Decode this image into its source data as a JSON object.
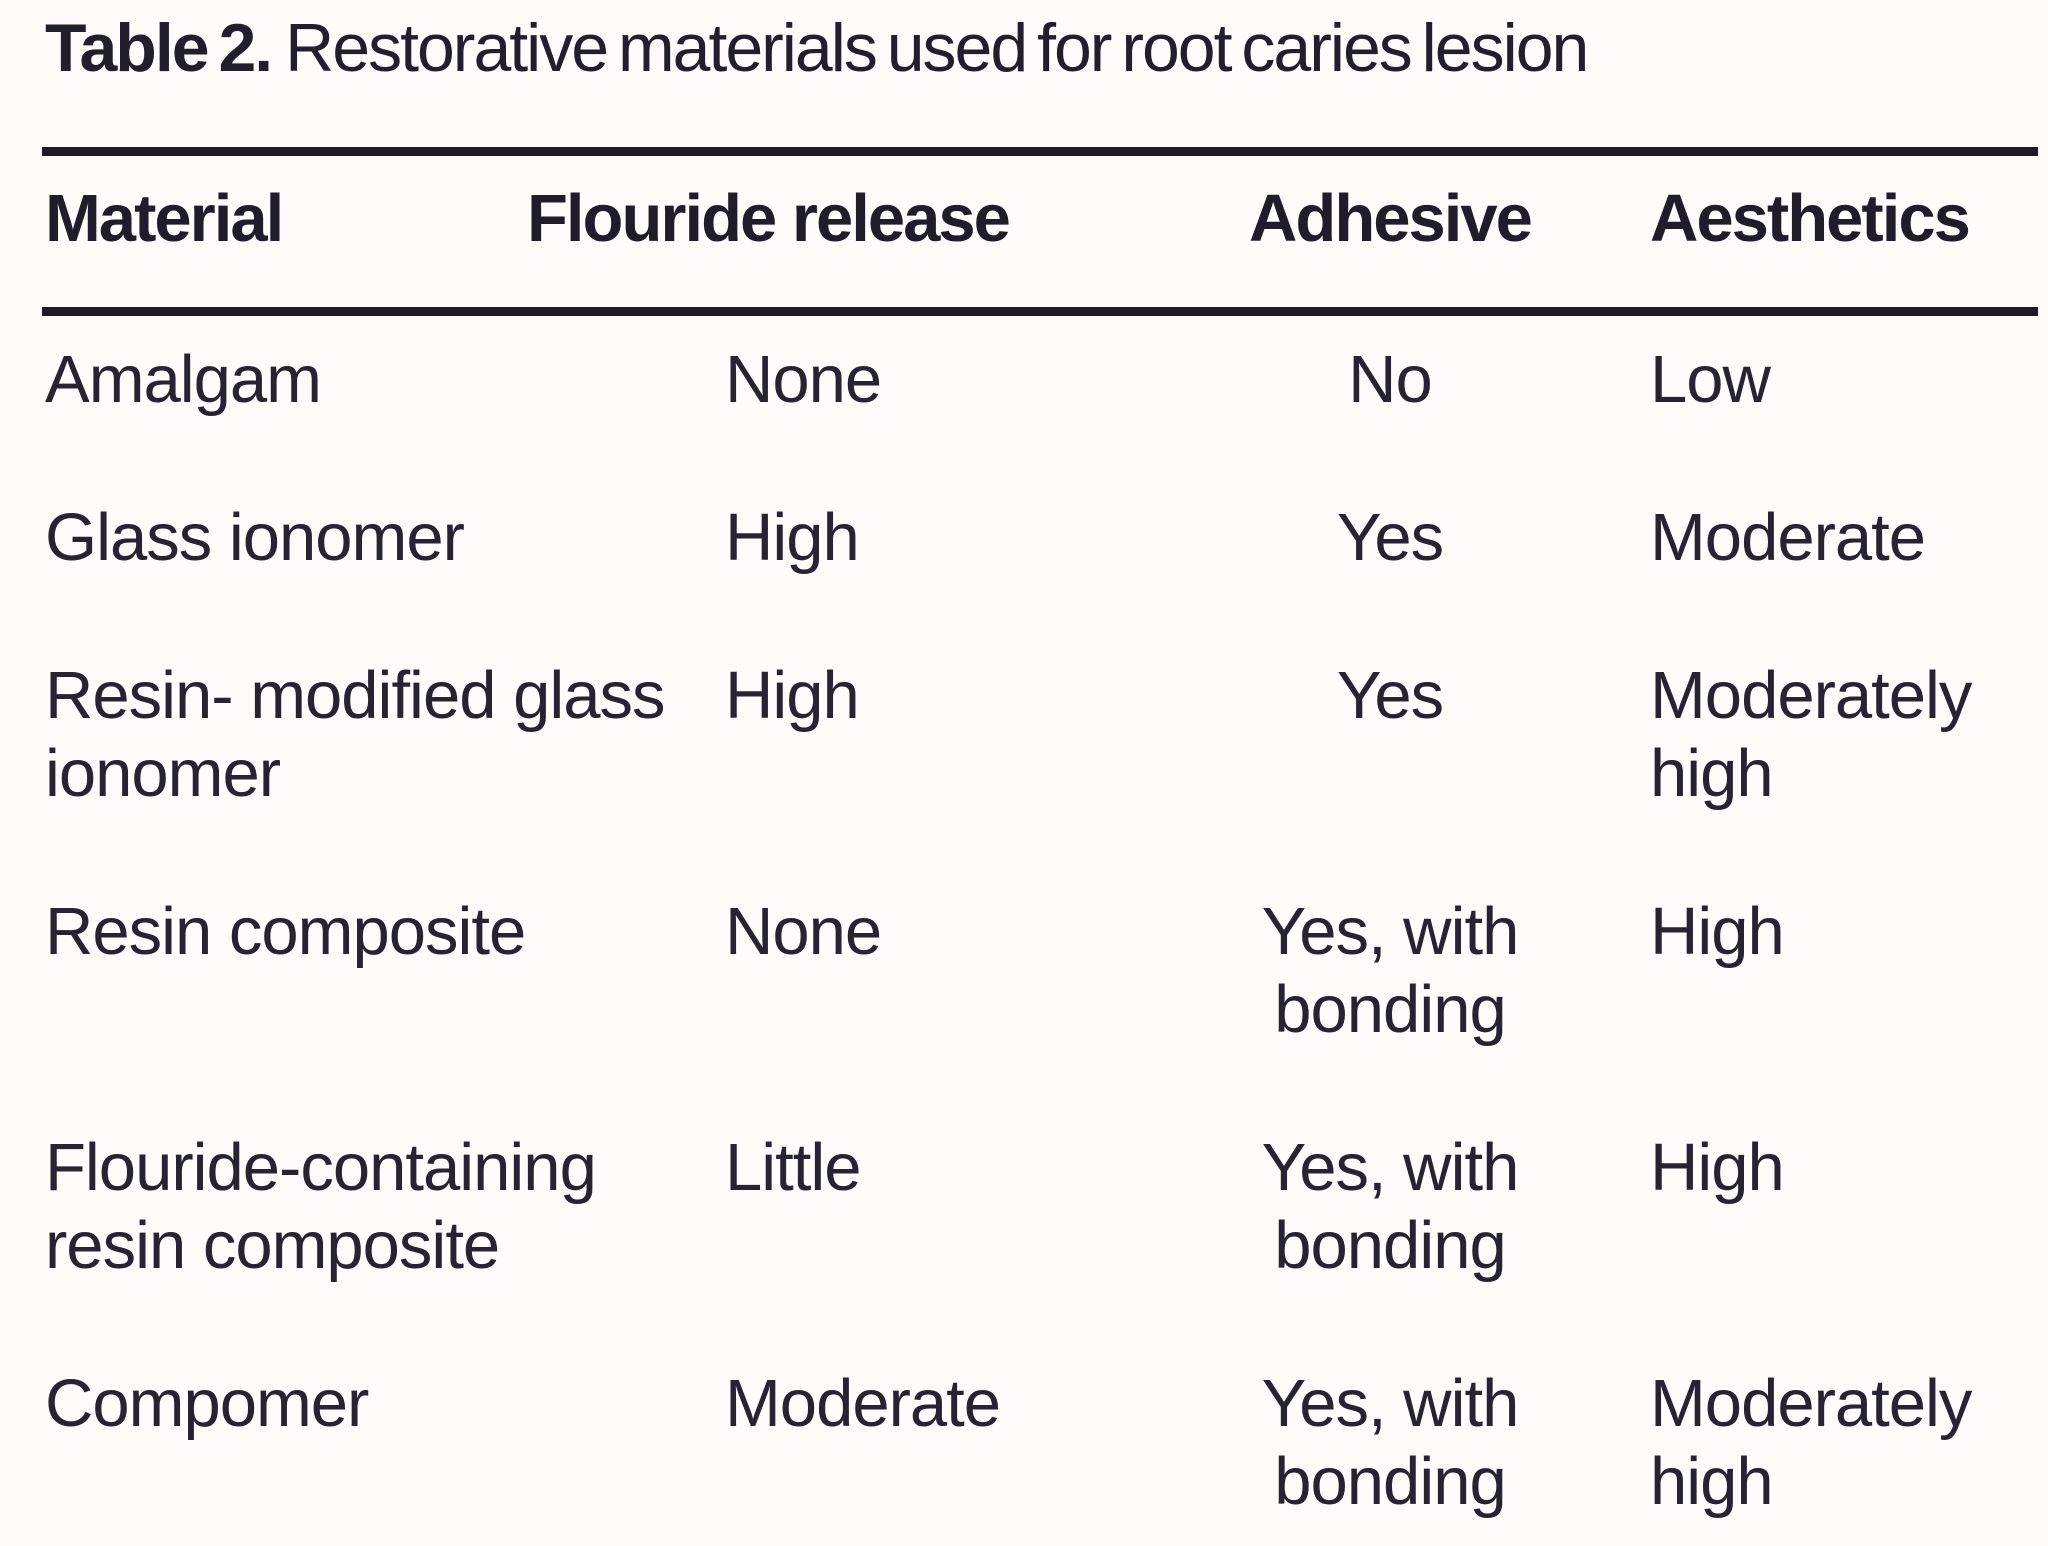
{
  "title": {
    "label": "Table 2.",
    "text": "Restorative materials used for root caries lesion"
  },
  "table": {
    "columns": [
      "Material",
      "Flouride release",
      "Adhesive",
      "Aesthetics"
    ],
    "rows": [
      {
        "material": "Amalgam",
        "flouride_release": "None",
        "adhesive": "No",
        "aesthetics": "Low"
      },
      {
        "material": "Glass ionomer",
        "flouride_release": "High",
        "adhesive": "Yes",
        "aesthetics": "Moderate"
      },
      {
        "material": "Resin- modified glass ionomer",
        "flouride_release": "High",
        "adhesive": "Yes",
        "aesthetics": "Moderately high"
      },
      {
        "material": "Resin composite",
        "flouride_release": "None",
        "adhesive": "Yes, with bonding",
        "aesthetics": "High"
      },
      {
        "material": "Flouride-containing resin composite",
        "flouride_release": "Little",
        "adhesive": "Yes, with bonding",
        "aesthetics": "High"
      },
      {
        "material": "Compomer",
        "flouride_release": "Moderate",
        "adhesive": "Yes, with bonding",
        "aesthetics": "Moderately high"
      }
    ]
  },
  "colors": {
    "background": "#fdfcfa",
    "ink": "#262430",
    "rule": "#1c1b22"
  }
}
